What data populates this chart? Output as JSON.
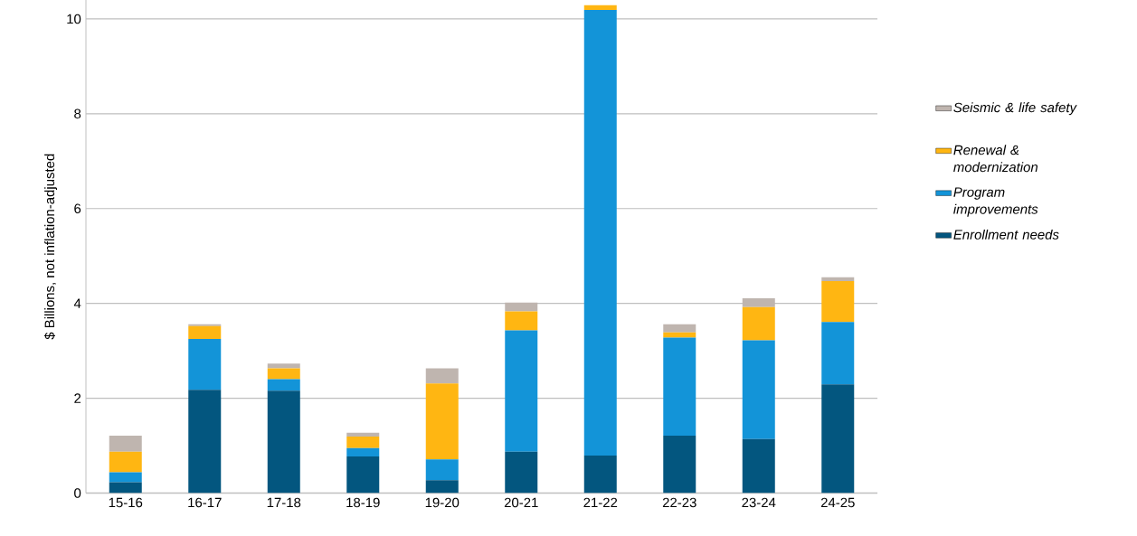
{
  "chart_data": {
    "type": "bar",
    "stacked": true,
    "ylabel": "$ Billions, not inflation-adjusted",
    "categories": [
      "15-16",
      "16-17",
      "17-18",
      "18-19",
      "19-20",
      "20-21",
      "21-22",
      "22-23",
      "23-24",
      "24-25"
    ],
    "series": [
      {
        "name": "Enrollment needs",
        "color": "#03567f",
        "values": [
          0.23,
          2.18,
          2.16,
          0.77,
          0.27,
          0.87,
          0.79,
          1.21,
          1.14,
          2.29
        ]
      },
      {
        "name": "Program improvements",
        "color": "#1394d8",
        "values": [
          0.21,
          1.07,
          0.24,
          0.18,
          0.44,
          2.56,
          9.4,
          2.07,
          2.08,
          1.32
        ]
      },
      {
        "name": "Renewal & modernization",
        "color": "#ffb612",
        "values": [
          0.43,
          0.27,
          0.23,
          0.24,
          1.6,
          0.4,
          0.1,
          0.11,
          0.7,
          0.86
        ]
      },
      {
        "name": "Seismic & life safety",
        "color": "#bfb5af",
        "values": [
          0.34,
          0.04,
          0.1,
          0.08,
          0.32,
          0.19,
          0,
          0.17,
          0.19,
          0.08
        ]
      }
    ],
    "ylim": [
      0,
      10.4
    ],
    "yticks": [
      0,
      2,
      4,
      6,
      8,
      10
    ],
    "grid": "y",
    "legend": "right"
  }
}
